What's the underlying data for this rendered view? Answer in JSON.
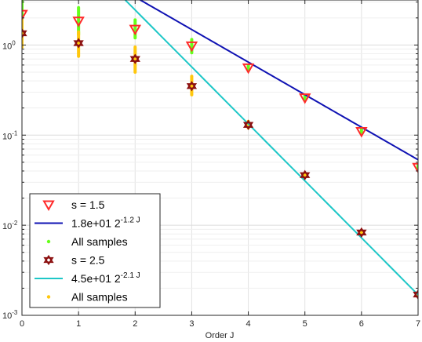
{
  "chart_data": {
    "type": "scatter",
    "title": "",
    "xlabel": "Order J",
    "ylabel": "",
    "xlim": [
      0,
      7
    ],
    "ylim": [
      0.001,
      3.16
    ],
    "yscale": "log",
    "grid": true,
    "legend_position": "bottom-left",
    "x_ticks": [
      0,
      1,
      2,
      3,
      4,
      5,
      6,
      7
    ],
    "x_tick_labels": [
      "0",
      "1",
      "2",
      "3",
      "4",
      "5",
      "6",
      "7"
    ],
    "y_ticks": [
      {
        "value": 1,
        "base": "10",
        "exp": "0"
      },
      {
        "value": 0.1,
        "base": "10",
        "exp": "-1"
      },
      {
        "value": 0.01,
        "base": "10",
        "exp": "-2"
      },
      {
        "value": 0.001,
        "base": "10",
        "exp": "-3"
      }
    ],
    "series": [
      {
        "name": "s = 1.5",
        "kind": "markers",
        "marker": "triangle-down",
        "color": "#ff2a2a",
        "x": [
          0,
          1,
          2,
          3,
          4,
          5,
          6,
          7
        ],
        "y": [
          2.2,
          1.85,
          1.5,
          0.98,
          0.56,
          0.26,
          0.11,
          0.044
        ]
      },
      {
        "name": "1.8e+01 2",
        "exponent": "-1.2 J",
        "kind": "fit-line",
        "color": "#0f12b3",
        "coef": 18,
        "rate": -1.2,
        "x_range": [
          0,
          7
        ]
      },
      {
        "name": "All samples",
        "kind": "sample-bars",
        "color": "#66ff1a",
        "x": [
          0,
          1,
          2,
          3,
          4,
          5,
          6,
          7
        ],
        "y_low": [
          1.4,
          1.3,
          1.2,
          0.82,
          0.52,
          0.245,
          0.105,
          0.042
        ],
        "y_high": [
          3.4,
          2.6,
          1.9,
          1.15,
          0.6,
          0.275,
          0.116,
          0.046
        ]
      },
      {
        "name": "s = 2.5",
        "kind": "markers",
        "marker": "hexagram",
        "color": "#8b0f0f",
        "x": [
          0,
          1,
          2,
          3,
          4,
          5,
          6,
          7
        ],
        "y": [
          1.35,
          1.05,
          0.7,
          0.35,
          0.13,
          0.036,
          0.0083,
          0.0017
        ]
      },
      {
        "name": "4.5e+01 2",
        "exponent": "-2.1 J",
        "kind": "fit-line",
        "color": "#1ec7c7",
        "coef": 45,
        "rate": -2.1,
        "x_range": [
          0,
          7
        ]
      },
      {
        "name": "All samples",
        "kind": "sample-bars",
        "color": "#ffc70d",
        "x": [
          0,
          1,
          2,
          3,
          4,
          5,
          6,
          7
        ],
        "y_low": [
          0.95,
          0.75,
          0.5,
          0.28,
          0.12,
          0.034,
          0.0079,
          0.00162
        ],
        "y_high": [
          1.9,
          1.4,
          0.95,
          0.45,
          0.142,
          0.038,
          0.0087,
          0.00178
        ]
      }
    ]
  }
}
